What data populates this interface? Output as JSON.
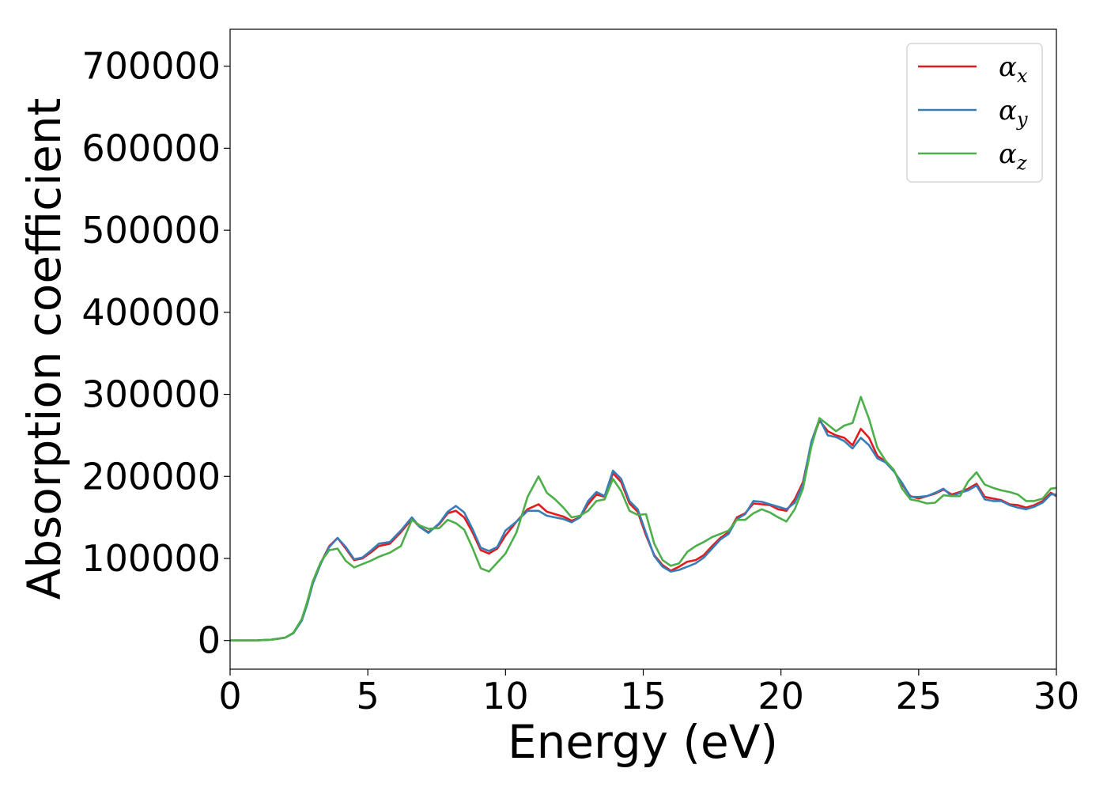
{
  "chart_data": {
    "type": "line",
    "title": "",
    "xlabel": "Energy (eV)",
    "ylabel": "Absorption coefficient",
    "xlim": [
      0,
      30
    ],
    "ylim": [
      -35000,
      745000
    ],
    "xticks": [
      0,
      5,
      10,
      15,
      20,
      25,
      30
    ],
    "yticks": [
      0,
      100000,
      200000,
      300000,
      400000,
      500000,
      600000,
      700000
    ],
    "grid": false,
    "legend_position": "top-right",
    "series": [
      {
        "name": "αx",
        "symbol": "α",
        "subscript": "x",
        "color": "#e41a1c",
        "x": [
          0,
          1,
          1.5,
          2,
          2.3,
          2.6,
          2.8,
          3.0,
          3.3,
          3.6,
          3.9,
          4.2,
          4.5,
          4.8,
          5.1,
          5.4,
          5.8,
          6.2,
          6.6,
          6.9,
          7.2,
          7.6,
          7.9,
          8.2,
          8.5,
          8.8,
          9.1,
          9.4,
          9.7,
          10.0,
          10.4,
          10.8,
          11.2,
          11.5,
          11.8,
          12.1,
          12.4,
          12.7,
          13.0,
          13.3,
          13.6,
          13.9,
          14.2,
          14.5,
          14.8,
          15.1,
          15.4,
          15.7,
          16.0,
          16.3,
          16.6,
          16.9,
          17.2,
          17.5,
          17.8,
          18.1,
          18.4,
          18.7,
          19.0,
          19.3,
          19.6,
          19.9,
          20.2,
          20.5,
          20.8,
          21.1,
          21.4,
          21.7,
          22.0,
          22.3,
          22.6,
          22.9,
          23.2,
          23.5,
          23.8,
          24.1,
          24.4,
          24.7,
          25.0,
          25.3,
          25.6,
          25.9,
          26.2,
          26.5,
          26.8,
          27.1,
          27.4,
          27.7,
          28.0,
          28.3,
          28.6,
          28.9,
          29.2,
          29.5,
          29.8,
          30
        ],
        "y": [
          0,
          200,
          1000,
          3500,
          9000,
          25000,
          45000,
          70000,
          95000,
          115000,
          125000,
          112000,
          98000,
          100000,
          107000,
          115000,
          118000,
          132000,
          148000,
          138000,
          132000,
          142000,
          155000,
          158000,
          150000,
          132000,
          110000,
          106000,
          112000,
          128000,
          145000,
          160000,
          166000,
          157000,
          154000,
          151000,
          146000,
          150000,
          166000,
          178000,
          175000,
          204000,
          193000,
          167000,
          157000,
          128000,
          104000,
          92000,
          85000,
          90000,
          96000,
          98000,
          104000,
          115000,
          125000,
          132000,
          150000,
          155000,
          167000,
          166000,
          165000,
          160000,
          158000,
          172000,
          193000,
          240000,
          268000,
          255000,
          250000,
          247000,
          238000,
          258000,
          247000,
          225000,
          218000,
          207000,
          190000,
          176000,
          173000,
          176000,
          179000,
          184000,
          178000,
          181000,
          185000,
          191000,
          175000,
          173000,
          171000,
          166000,
          165000,
          162000,
          165000,
          170000,
          180000,
          176000
        ]
      },
      {
        "name": "αy",
        "symbol": "α",
        "subscript": "y",
        "color": "#377eb8",
        "x": [
          0,
          1,
          1.5,
          2,
          2.3,
          2.6,
          2.8,
          3.0,
          3.3,
          3.6,
          3.9,
          4.2,
          4.5,
          4.8,
          5.1,
          5.4,
          5.8,
          6.2,
          6.6,
          6.9,
          7.2,
          7.6,
          7.9,
          8.2,
          8.5,
          8.8,
          9.1,
          9.4,
          9.7,
          10.0,
          10.4,
          10.8,
          11.2,
          11.5,
          11.8,
          12.1,
          12.4,
          12.7,
          13.0,
          13.3,
          13.6,
          13.9,
          14.2,
          14.5,
          14.8,
          15.1,
          15.4,
          15.7,
          16.0,
          16.3,
          16.6,
          16.9,
          17.2,
          17.5,
          17.8,
          18.1,
          18.4,
          18.7,
          19.0,
          19.3,
          19.6,
          19.9,
          20.2,
          20.5,
          20.8,
          21.1,
          21.4,
          21.7,
          22.0,
          22.3,
          22.6,
          22.9,
          23.2,
          23.5,
          23.8,
          24.1,
          24.4,
          24.7,
          25.0,
          25.3,
          25.6,
          25.9,
          26.2,
          26.5,
          26.8,
          27.1,
          27.4,
          27.7,
          28.0,
          28.3,
          28.6,
          28.9,
          29.2,
          29.5,
          29.8,
          30
        ],
        "y": [
          0,
          200,
          1000,
          3500,
          9000,
          24000,
          44000,
          69000,
          94000,
          114000,
          125000,
          114000,
          99000,
          101000,
          109000,
          118000,
          120000,
          134000,
          150000,
          138000,
          131000,
          143000,
          157000,
          164000,
          156000,
          136000,
          113000,
          109000,
          114000,
          134000,
          145000,
          158000,
          158000,
          152000,
          150000,
          148000,
          144000,
          150000,
          170000,
          181000,
          176000,
          207000,
          197000,
          170000,
          160000,
          131000,
          103000,
          90000,
          84000,
          86000,
          90000,
          94000,
          101000,
          112000,
          123000,
          130000,
          148000,
          154000,
          170000,
          169000,
          166000,
          163000,
          160000,
          168000,
          190000,
          242000,
          270000,
          250000,
          248000,
          243000,
          234000,
          247000,
          238000,
          222000,
          217000,
          206000,
          192000,
          175000,
          175000,
          176000,
          180000,
          185000,
          176000,
          180000,
          183000,
          189000,
          172000,
          170000,
          170000,
          165000,
          162000,
          160000,
          163000,
          168000,
          178000,
          178000
        ]
      },
      {
        "name": "αz",
        "symbol": "α",
        "subscript": "z",
        "color": "#4daf4a",
        "x": [
          0,
          1,
          1.5,
          2,
          2.3,
          2.6,
          2.8,
          3.0,
          3.3,
          3.6,
          3.9,
          4.2,
          4.5,
          4.8,
          5.1,
          5.4,
          5.8,
          6.2,
          6.6,
          6.9,
          7.2,
          7.6,
          7.9,
          8.2,
          8.5,
          8.8,
          9.1,
          9.4,
          9.7,
          10.0,
          10.4,
          10.8,
          11.2,
          11.5,
          11.8,
          12.1,
          12.4,
          12.7,
          13.0,
          13.3,
          13.6,
          13.9,
          14.2,
          14.5,
          14.8,
          15.1,
          15.4,
          15.7,
          16.0,
          16.3,
          16.6,
          16.9,
          17.2,
          17.5,
          17.8,
          18.1,
          18.4,
          18.7,
          19.0,
          19.3,
          19.6,
          19.9,
          20.2,
          20.5,
          20.8,
          21.1,
          21.4,
          21.7,
          22.0,
          22.3,
          22.6,
          22.9,
          23.2,
          23.5,
          23.8,
          24.1,
          24.4,
          24.7,
          25.0,
          25.3,
          25.6,
          25.9,
          26.2,
          26.5,
          26.8,
          27.1,
          27.4,
          27.7,
          28.0,
          28.3,
          28.6,
          28.9,
          29.2,
          29.5,
          29.8,
          30
        ],
        "y": [
          0,
          200,
          1000,
          3500,
          9500,
          26000,
          47000,
          72000,
          96000,
          110000,
          112000,
          97000,
          89000,
          93000,
          97000,
          102000,
          107000,
          115000,
          147000,
          140000,
          136000,
          137000,
          147000,
          143000,
          135000,
          113000,
          88000,
          84000,
          95000,
          106000,
          132000,
          175000,
          200000,
          180000,
          172000,
          162000,
          150000,
          152000,
          158000,
          170000,
          172000,
          197000,
          182000,
          158000,
          153000,
          154000,
          118000,
          98000,
          91000,
          94000,
          108000,
          115000,
          120000,
          126000,
          130000,
          134000,
          147000,
          147000,
          155000,
          160000,
          156000,
          150000,
          145000,
          160000,
          185000,
          236000,
          271000,
          263000,
          255000,
          262000,
          265000,
          297000,
          270000,
          235000,
          219000,
          208000,
          185000,
          172000,
          170000,
          167000,
          168000,
          177000,
          176000,
          176000,
          194000,
          205000,
          190000,
          186000,
          183000,
          181000,
          178000,
          170000,
          170000,
          173000,
          185000,
          186000
        ]
      }
    ]
  }
}
